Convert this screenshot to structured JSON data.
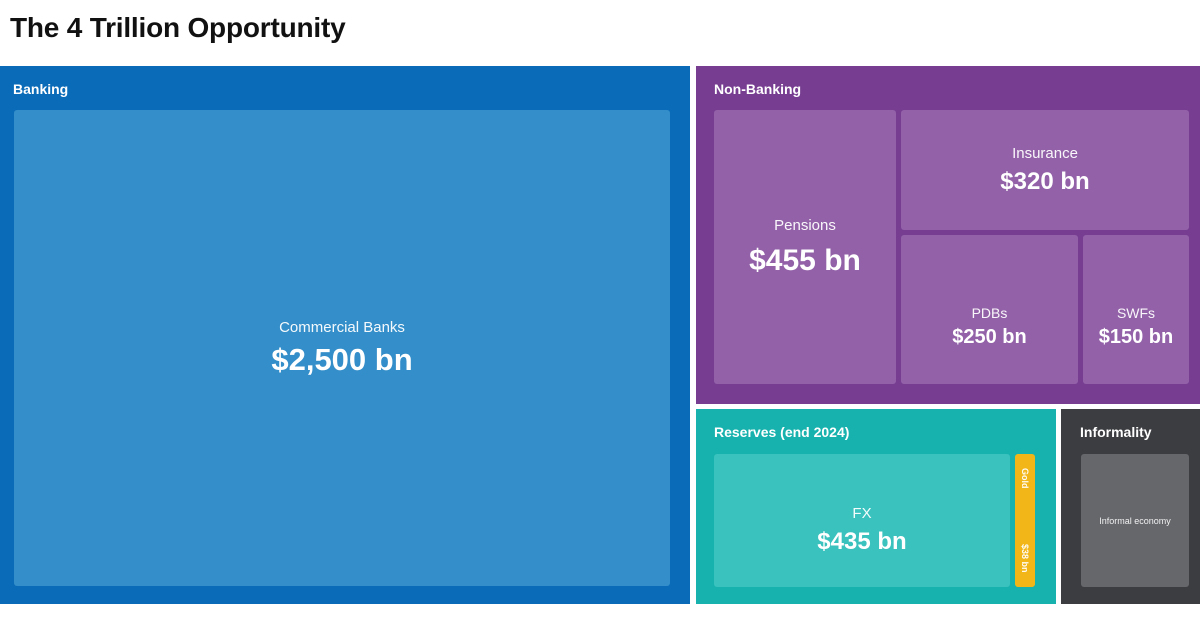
{
  "title": "The 4 Trillion Opportunity",
  "colors": {
    "banking": "#0a6bb8",
    "banking_tile": "#348ec9",
    "non_banking": "#773d91",
    "non_banking_tile": "#9261a8",
    "reserves": "#17b2ad",
    "reserves_tile": "#39c2be",
    "gold": "#f2b619",
    "informality": "#3c3d41",
    "informality_tile": "#66676b"
  },
  "chart_data": {
    "type": "treemap",
    "title": "The 4 Trillion Opportunity",
    "unit": "bn",
    "groups": [
      {
        "name": "Banking",
        "children": [
          {
            "name": "Commercial Banks",
            "label": "$2,500 bn",
            "value": 2500
          }
        ]
      },
      {
        "name": "Non-Banking",
        "children": [
          {
            "name": "Pensions",
            "label": "$455 bn",
            "value": 455
          },
          {
            "name": "Insurance",
            "label": "$320 bn",
            "value": 320
          },
          {
            "name": "PDBs",
            "label": "$250 bn",
            "value": 250
          },
          {
            "name": "SWFs",
            "label": "$150 bn",
            "value": 150
          }
        ]
      },
      {
        "name": "Reserves (end 2024)",
        "children": [
          {
            "name": "FX",
            "label": "$435 bn",
            "value": 435
          },
          {
            "name": "Gold",
            "label": "$38 bn",
            "value": 38
          }
        ]
      },
      {
        "name": "Informality",
        "children": [
          {
            "name": "Informal economy",
            "label": "",
            "value": null
          }
        ]
      }
    ]
  }
}
